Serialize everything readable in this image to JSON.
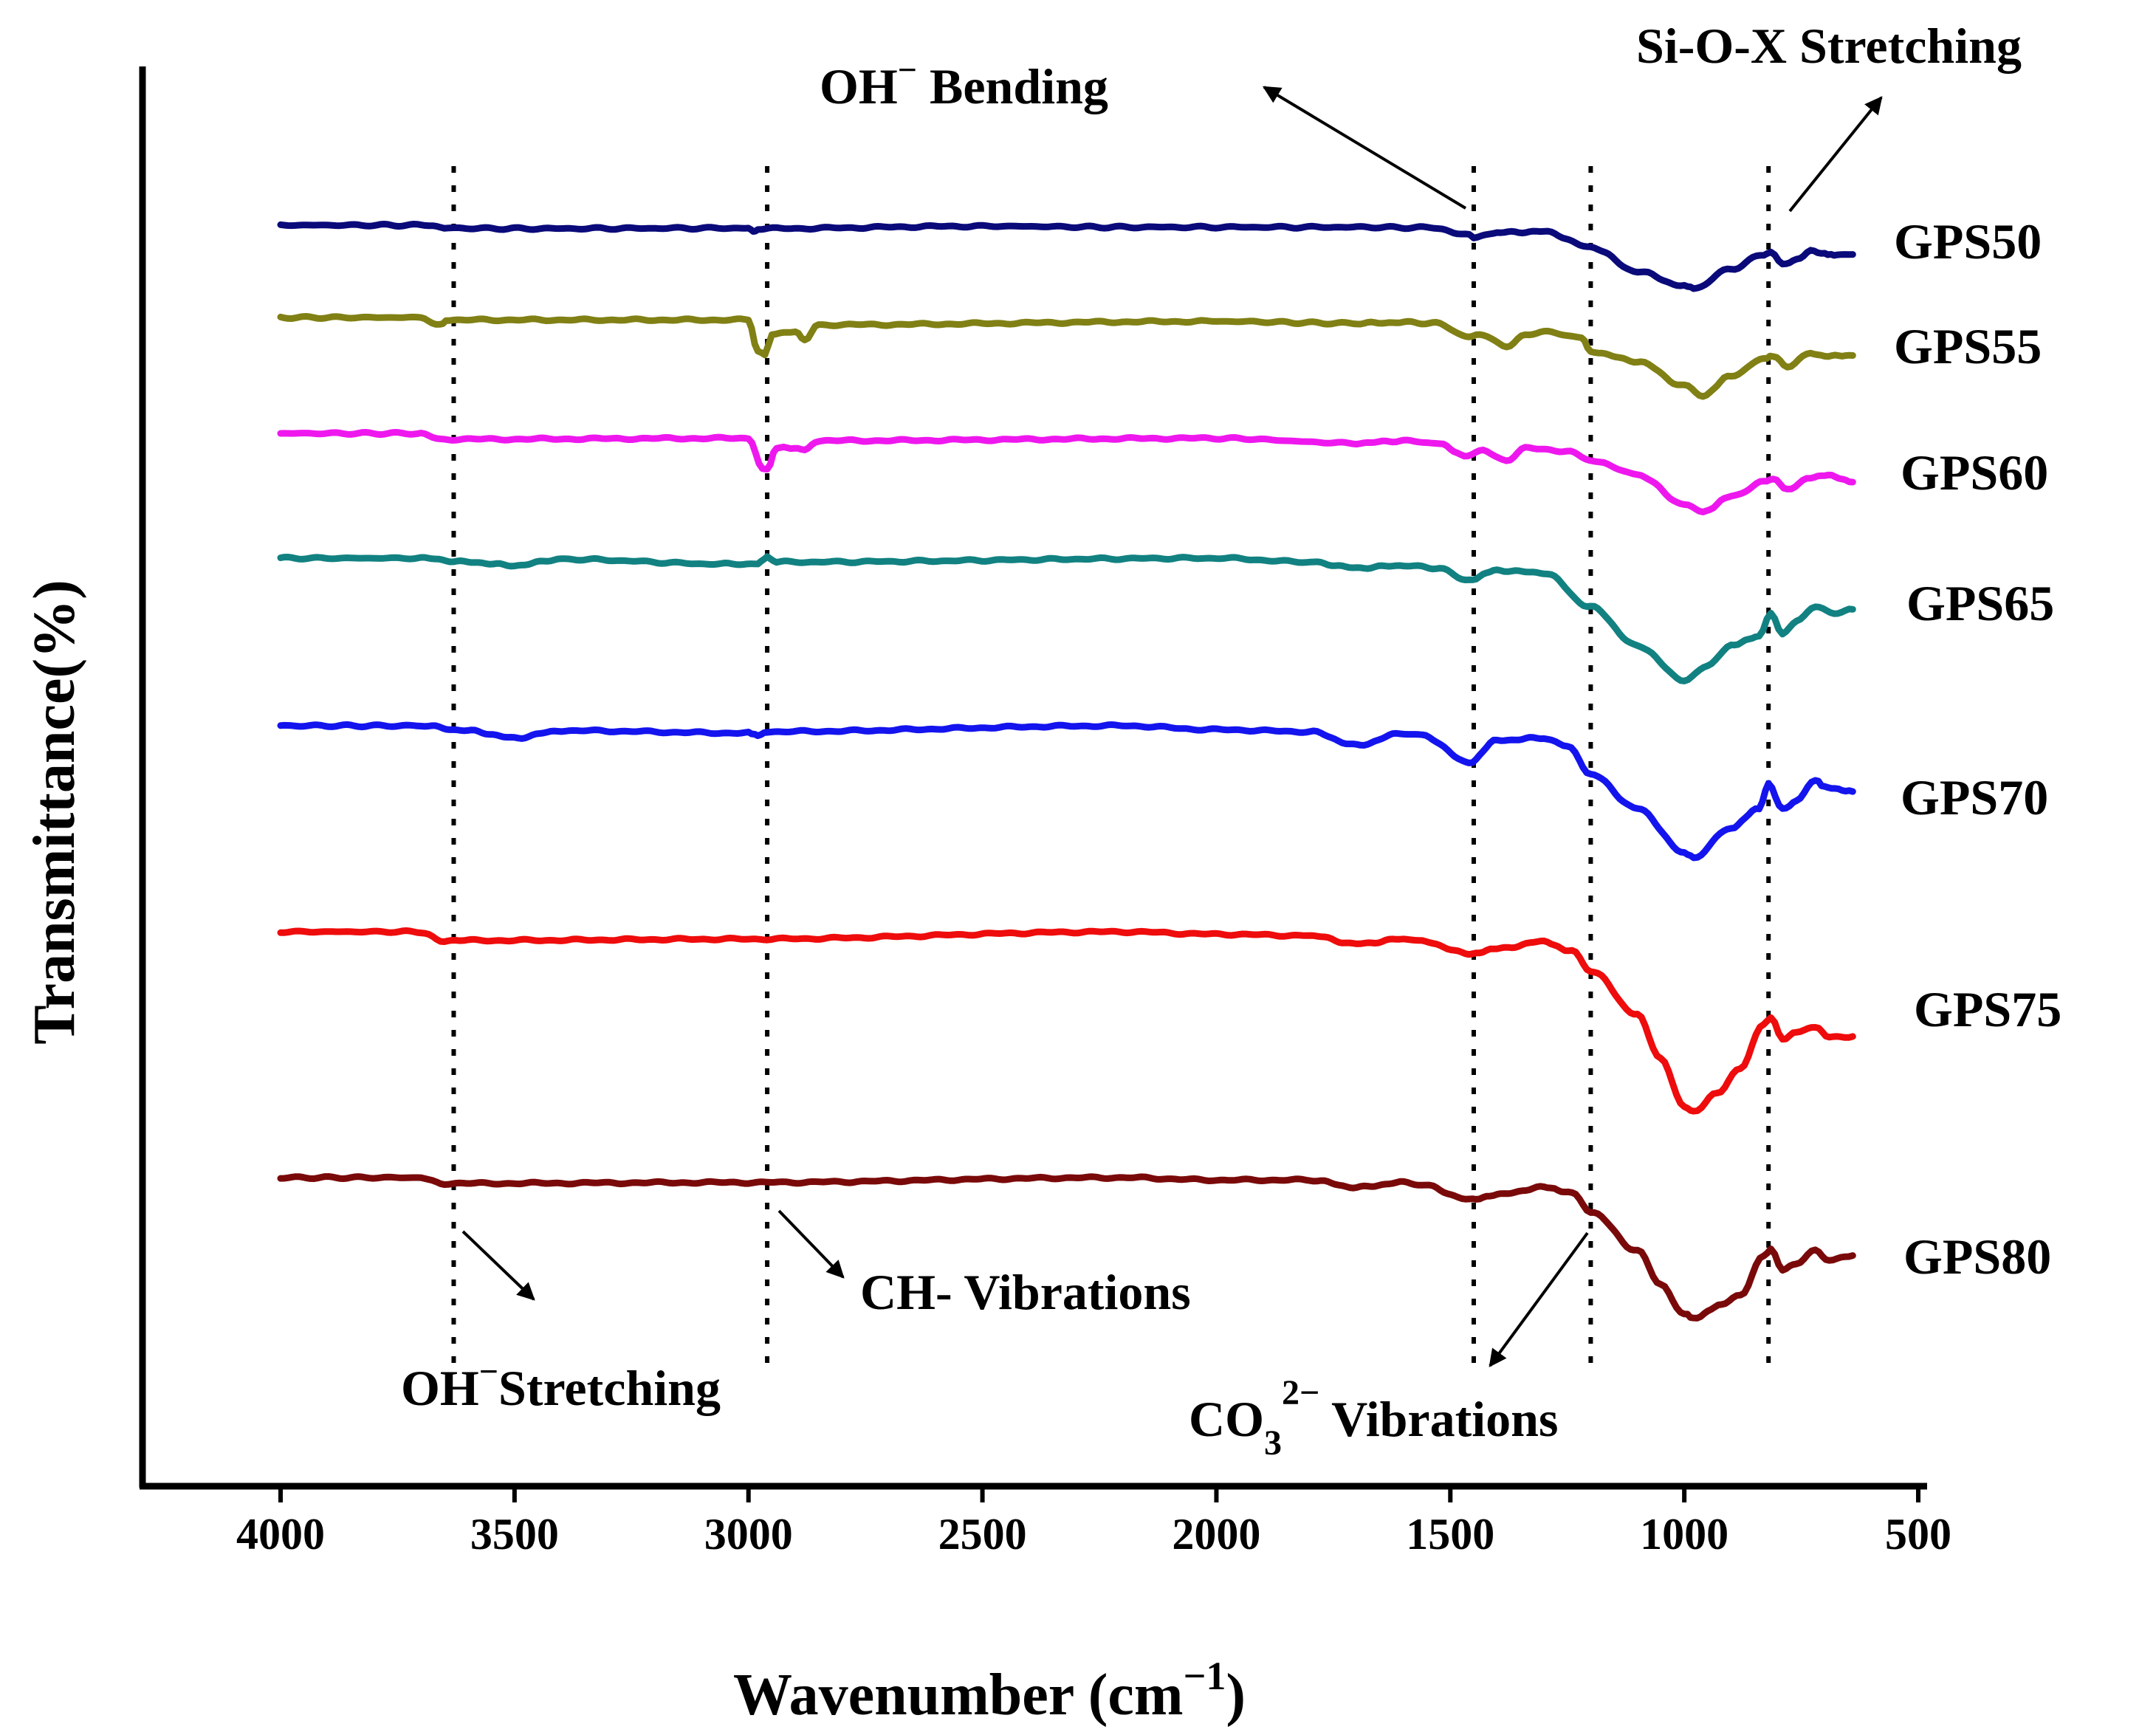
{
  "chart_data": {
    "type": "line",
    "title": "",
    "xlabel": "Wavenumber (cm⁻¹)",
    "xlabel_main": "Wavenumber (cm",
    "xlabel_sup": "−1",
    "xlabel_close": ")",
    "ylabel": "Transmittance(%)",
    "xlim": [
      4300,
      500
    ],
    "x_ticks": [
      4000,
      3500,
      3000,
      2500,
      2000,
      1500,
      1000,
      500
    ],
    "y_ticks_shown": false,
    "grid": false,
    "series": [
      {
        "name": "GPS50",
        "color": "#0a0a7a",
        "points": [
          [
            4000,
            0.0
          ],
          [
            3700,
            0.0
          ],
          [
            3650,
            -0.06
          ],
          [
            3500,
            -0.07
          ],
          [
            3000,
            -0.06
          ],
          [
            2990,
            -0.14
          ],
          [
            2980,
            -0.07
          ],
          [
            2500,
            -0.02
          ],
          [
            2200,
            -0.04
          ],
          [
            1700,
            -0.04
          ],
          [
            1550,
            -0.05
          ],
          [
            1460,
            -0.2
          ],
          [
            1450,
            -0.24
          ],
          [
            1400,
            -0.15
          ],
          [
            1300,
            -0.13
          ],
          [
            1200,
            -0.45
          ],
          [
            1100,
            -0.95
          ],
          [
            1000,
            -1.25
          ],
          [
            980,
            -1.3
          ],
          [
            900,
            -0.9
          ],
          [
            830,
            -0.6
          ],
          [
            815,
            -0.55
          ],
          [
            790,
            -0.82
          ],
          [
            760,
            -0.7
          ],
          [
            730,
            -0.52
          ],
          [
            700,
            -0.6
          ],
          [
            680,
            -0.62
          ],
          [
            640,
            -0.6
          ]
        ]
      },
      {
        "name": "GPS55",
        "color": "#808015",
        "points": [
          [
            4000,
            0.0
          ],
          [
            3700,
            0.0
          ],
          [
            3660,
            -0.15
          ],
          [
            3640,
            -0.05
          ],
          [
            3000,
            -0.05
          ],
          [
            2980,
            -0.7
          ],
          [
            2965,
            -0.75
          ],
          [
            2950,
            -0.35
          ],
          [
            2900,
            -0.28
          ],
          [
            2880,
            -0.45
          ],
          [
            2850,
            -0.15
          ],
          [
            2000,
            -0.08
          ],
          [
            1700,
            -0.12
          ],
          [
            1600,
            -0.1
          ],
          [
            1530,
            -0.12
          ],
          [
            1460,
            -0.4
          ],
          [
            1430,
            -0.35
          ],
          [
            1380,
            -0.6
          ],
          [
            1340,
            -0.35
          ],
          [
            1300,
            -0.3
          ],
          [
            1220,
            -0.4
          ],
          [
            1200,
            -0.7
          ],
          [
            1100,
            -0.9
          ],
          [
            1000,
            -1.4
          ],
          [
            960,
            -1.6
          ],
          [
            900,
            -1.2
          ],
          [
            830,
            -0.85
          ],
          [
            810,
            -0.8
          ],
          [
            780,
            -1.0
          ],
          [
            730,
            -0.72
          ],
          [
            700,
            -0.8
          ],
          [
            640,
            -0.78
          ]
        ]
      },
      {
        "name": "GPS60",
        "color": "#ee18ee",
        "points": [
          [
            4000,
            0.0
          ],
          [
            3700,
            0.0
          ],
          [
            3650,
            -0.12
          ],
          [
            3000,
            -0.1
          ],
          [
            2970,
            -0.7
          ],
          [
            2960,
            -0.75
          ],
          [
            2940,
            -0.3
          ],
          [
            2880,
            -0.32
          ],
          [
            2850,
            -0.15
          ],
          [
            2000,
            -0.1
          ],
          [
            1700,
            -0.2
          ],
          [
            1600,
            -0.15
          ],
          [
            1530,
            -0.2
          ],
          [
            1470,
            -0.45
          ],
          [
            1430,
            -0.35
          ],
          [
            1380,
            -0.55
          ],
          [
            1340,
            -0.3
          ],
          [
            1250,
            -0.38
          ],
          [
            1180,
            -0.6
          ],
          [
            1100,
            -0.85
          ],
          [
            1000,
            -1.45
          ],
          [
            960,
            -1.6
          ],
          [
            900,
            -1.3
          ],
          [
            830,
            -1.0
          ],
          [
            810,
            -0.95
          ],
          [
            780,
            -1.15
          ],
          [
            730,
            -0.9
          ],
          [
            700,
            -0.85
          ],
          [
            640,
            -1.0
          ]
        ]
      },
      {
        "name": "GPS65",
        "color": "#128181",
        "points": [
          [
            4000,
            0.0
          ],
          [
            3700,
            0.0
          ],
          [
            3600,
            -0.08
          ],
          [
            3500,
            -0.15
          ],
          [
            3400,
            -0.02
          ],
          [
            3050,
            -0.12
          ],
          [
            2980,
            -0.12
          ],
          [
            2960,
            0.02
          ],
          [
            2940,
            -0.08
          ],
          [
            2000,
            0.0
          ],
          [
            1800,
            -0.08
          ],
          [
            1700,
            -0.2
          ],
          [
            1600,
            -0.15
          ],
          [
            1530,
            -0.2
          ],
          [
            1460,
            -0.45
          ],
          [
            1400,
            -0.25
          ],
          [
            1300,
            -0.3
          ],
          [
            1200,
            -1.0
          ],
          [
            1100,
            -1.8
          ],
          [
            1000,
            -2.5
          ],
          [
            950,
            -2.2
          ],
          [
            900,
            -1.8
          ],
          [
            840,
            -1.6
          ],
          [
            815,
            -1.15
          ],
          [
            790,
            -1.55
          ],
          [
            760,
            -1.3
          ],
          [
            720,
            -1.0
          ],
          [
            680,
            -1.12
          ],
          [
            640,
            -1.05
          ]
        ]
      },
      {
        "name": "GPS70",
        "color": "#1414ee",
        "points": [
          [
            4000,
            0.0
          ],
          [
            3700,
            0.0
          ],
          [
            3600,
            -0.1
          ],
          [
            3500,
            -0.25
          ],
          [
            3400,
            -0.1
          ],
          [
            3000,
            -0.15
          ],
          [
            2980,
            -0.2
          ],
          [
            2960,
            -0.12
          ],
          [
            2200,
            0.0
          ],
          [
            2000,
            -0.08
          ],
          [
            1800,
            -0.12
          ],
          [
            1700,
            -0.4
          ],
          [
            1600,
            -0.15
          ],
          [
            1560,
            -0.2
          ],
          [
            1460,
            -0.75
          ],
          [
            1400,
            -0.3
          ],
          [
            1300,
            -0.25
          ],
          [
            1250,
            -0.4
          ],
          [
            1200,
            -1.0
          ],
          [
            1100,
            -1.7
          ],
          [
            1000,
            -2.6
          ],
          [
            980,
            -2.7
          ],
          [
            900,
            -2.1
          ],
          [
            840,
            -1.7
          ],
          [
            820,
            -1.2
          ],
          [
            790,
            -1.7
          ],
          [
            760,
            -1.55
          ],
          [
            720,
            -1.1
          ],
          [
            700,
            -1.25
          ],
          [
            640,
            -1.35
          ]
        ]
      },
      {
        "name": "GPS75",
        "color": "#ee0c0c",
        "points": [
          [
            4000,
            0.0
          ],
          [
            3700,
            0.0
          ],
          [
            3650,
            -0.2
          ],
          [
            3600,
            -0.18
          ],
          [
            3000,
            -0.15
          ],
          [
            2200,
            0.0
          ],
          [
            2000,
            -0.05
          ],
          [
            1800,
            -0.08
          ],
          [
            1700,
            -0.25
          ],
          [
            1600,
            -0.15
          ],
          [
            1560,
            -0.2
          ],
          [
            1460,
            -0.45
          ],
          [
            1400,
            -0.35
          ],
          [
            1300,
            -0.2
          ],
          [
            1240,
            -0.4
          ],
          [
            1200,
            -0.8
          ],
          [
            1100,
            -1.7
          ],
          [
            1050,
            -2.6
          ],
          [
            1000,
            -3.6
          ],
          [
            980,
            -3.7
          ],
          [
            930,
            -3.3
          ],
          [
            880,
            -2.8
          ],
          [
            830,
            -1.9
          ],
          [
            815,
            -1.75
          ],
          [
            790,
            -2.2
          ],
          [
            760,
            -2.05
          ],
          [
            720,
            -1.95
          ],
          [
            690,
            -2.15
          ],
          [
            640,
            -2.15
          ]
        ]
      },
      {
        "name": "GPS80",
        "color": "#7a0a0a",
        "points": [
          [
            4000,
            0.0
          ],
          [
            3700,
            0.0
          ],
          [
            3650,
            -0.12
          ],
          [
            3000,
            -0.1
          ],
          [
            2200,
            0.0
          ],
          [
            2000,
            -0.05
          ],
          [
            1800,
            -0.05
          ],
          [
            1700,
            -0.2
          ],
          [
            1600,
            -0.1
          ],
          [
            1560,
            -0.15
          ],
          [
            1460,
            -0.45
          ],
          [
            1400,
            -0.35
          ],
          [
            1300,
            -0.2
          ],
          [
            1240,
            -0.3
          ],
          [
            1200,
            -0.7
          ],
          [
            1100,
            -1.5
          ],
          [
            1050,
            -2.2
          ],
          [
            1000,
            -2.8
          ],
          [
            980,
            -2.9
          ],
          [
            920,
            -2.6
          ],
          [
            880,
            -2.4
          ],
          [
            830,
            -1.6
          ],
          [
            815,
            -1.45
          ],
          [
            790,
            -1.9
          ],
          [
            760,
            -1.75
          ],
          [
            720,
            -1.5
          ],
          [
            690,
            -1.7
          ],
          [
            640,
            -1.6
          ]
        ]
      }
    ],
    "reference_lines": [
      3630,
      2960,
      1450,
      1200,
      820
    ],
    "annotations": {
      "oh_bending": {
        "text_main": "OH",
        "text_sup": "−",
        "text_rest": " Bending"
      },
      "sio_stretch": {
        "text": "Si-O-X Stretching"
      },
      "oh_stretch": {
        "text_main": "OH",
        "text_sup": "−",
        "text_rest": "Stretching"
      },
      "ch_vib": {
        "text": "CH- Vibrations"
      },
      "co3_vib": {
        "text_main": "CO",
        "text_sub": "3",
        "text_sup": "2−",
        "text_rest": " Vibrations"
      }
    }
  }
}
